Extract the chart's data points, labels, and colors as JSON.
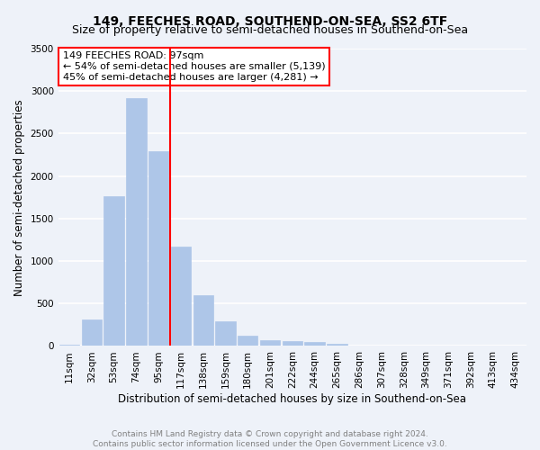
{
  "title": "149, FEECHES ROAD, SOUTHEND-ON-SEA, SS2 6TF",
  "subtitle": "Size of property relative to semi-detached houses in Southend-on-Sea",
  "xlabel": "Distribution of semi-detached houses by size in Southend-on-Sea",
  "ylabel": "Number of semi-detached properties",
  "footer_line1": "Contains HM Land Registry data © Crown copyright and database right 2024.",
  "footer_line2": "Contains public sector information licensed under the Open Government Licence v3.0.",
  "bar_labels": [
    "11sqm",
    "32sqm",
    "53sqm",
    "74sqm",
    "95sqm",
    "117sqm",
    "138sqm",
    "159sqm",
    "180sqm",
    "201sqm",
    "222sqm",
    "244sqm",
    "265sqm",
    "286sqm",
    "307sqm",
    "328sqm",
    "349sqm",
    "371sqm",
    "392sqm",
    "413sqm",
    "434sqm"
  ],
  "bar_values": [
    20,
    310,
    1760,
    2920,
    2290,
    1170,
    600,
    290,
    120,
    65,
    55,
    45,
    25,
    0,
    0,
    0,
    0,
    0,
    0,
    0,
    0
  ],
  "bar_color": "#aec6e8",
  "bar_edgecolor": "#aec6e8",
  "vline_color": "red",
  "vline_pos": 4.5,
  "ylim": [
    0,
    3500
  ],
  "yticks": [
    0,
    500,
    1000,
    1500,
    2000,
    2500,
    3000,
    3500
  ],
  "annotation_line1": "149 FEECHES ROAD: 97sqm",
  "annotation_line2": "← 54% of semi-detached houses are smaller (5,139)",
  "annotation_line3": "45% of semi-detached houses are larger (4,281) →",
  "annotation_box_color": "white",
  "annotation_box_edgecolor": "red",
  "background_color": "#eef2f9",
  "grid_color": "white",
  "title_fontsize": 10,
  "subtitle_fontsize": 9,
  "xlabel_fontsize": 8.5,
  "ylabel_fontsize": 8.5,
  "tick_fontsize": 7.5,
  "footer_fontsize": 6.5,
  "annotation_fontsize": 8
}
